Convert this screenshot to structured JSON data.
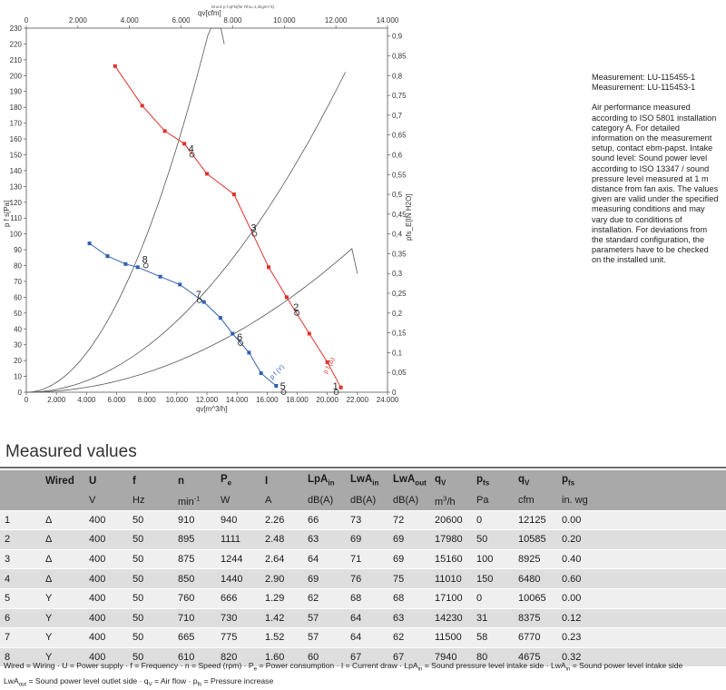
{
  "chart_data": {
    "type": "line",
    "title": "Druck p f-qFN(für Rho=1,2kg/m^3)",
    "xlabel_bottom": "qv[m^3/h]",
    "xlabel_top": "qv[cfm]",
    "ylabel_left": "p f s[Pa]",
    "ylabel_right": "pfs_E[IN H2O]",
    "xlim": [
      0,
      24000
    ],
    "ylim": [
      0,
      230
    ],
    "top_xlim": [
      0,
      14000
    ],
    "right_ylim": [
      0,
      0.92
    ],
    "x_ticks": [
      "0",
      "2.000",
      "4.000",
      "6.000",
      "8.000",
      "10.000",
      "12.000",
      "14.000",
      "16.000",
      "18.000",
      "20.000",
      "22.000",
      "24.000"
    ],
    "top_x_ticks": [
      "0",
      "2.000",
      "4.000",
      "6.000",
      "8.000",
      "10.000",
      "12.000",
      "14.000"
    ],
    "y_ticks": [
      "0",
      "10",
      "20",
      "30",
      "40",
      "50",
      "60",
      "70",
      "80",
      "90",
      "100",
      "110",
      "120",
      "130",
      "140",
      "150",
      "160",
      "170",
      "180",
      "190",
      "200",
      "210",
      "220",
      "230"
    ],
    "right_ticks": [
      "0",
      "0,05",
      "0,1",
      "0,15",
      "0,2",
      "0,25",
      "0,3",
      "0,35",
      "0,4",
      "0,45",
      "0,5",
      "0,55",
      "0,6",
      "0,65",
      "0,7",
      "0,75",
      "0,8",
      "0,85",
      "0,9"
    ],
    "grid": false,
    "series": [
      {
        "name": "p f (Δ)",
        "color": "#e0312b",
        "x": [
          5900,
          7700,
          9200,
          10500,
          12000,
          13800,
          16100,
          17300,
          18800,
          20000,
          20900
        ],
        "y": [
          206,
          181,
          165,
          157,
          138,
          125,
          79,
          60,
          37,
          19,
          3
        ]
      },
      {
        "name": "p f (Y)",
        "color": "#2f5fad",
        "x": [
          4200,
          5400,
          6600,
          7400,
          8900,
          10200,
          11800,
          12900,
          13700,
          14800,
          15600,
          16600
        ],
        "y": [
          94,
          86,
          81,
          79,
          73,
          68,
          57,
          47,
          37,
          25,
          12,
          4
        ]
      }
    ],
    "system_curves": [
      {
        "name": "system-curve-1",
        "x": [
          0,
          4000,
          8000,
          12000,
          16000,
          20000,
          22000
        ],
        "y": [
          0,
          3.1,
          12.4,
          27.9,
          49.6,
          77.5,
          75
        ]
      },
      {
        "name": "system-curve-2",
        "x": [
          0,
          4000,
          8000,
          12000,
          16000,
          20000,
          21200
        ],
        "y": [
          0,
          7.2,
          28.8,
          64.8,
          115.2,
          180,
          203
        ]
      },
      {
        "name": "system-curve-3",
        "x": [
          0,
          4000,
          8000,
          12000,
          13150
        ],
        "y": [
          0,
          24.8,
          99.3,
          223.3,
          220
        ]
      }
    ],
    "operating_points": [
      {
        "label": "1",
        "x": 20600,
        "y": 0
      },
      {
        "label": "2",
        "x": 17980,
        "y": 50
      },
      {
        "label": "3",
        "x": 15160,
        "y": 100
      },
      {
        "label": "4",
        "x": 11010,
        "y": 150
      },
      {
        "label": "5",
        "x": 17100,
        "y": 0
      },
      {
        "label": "6",
        "x": 14230,
        "y": 31
      },
      {
        "label": "7",
        "x": 11500,
        "y": 58
      },
      {
        "label": "8",
        "x": 7940,
        "y": 80
      }
    ],
    "curve_labels": [
      "p f (Δ)",
      "p f (Y)"
    ]
  },
  "side_note": {
    "measurement_1": "Measurement: LU-115455-1",
    "measurement_2": "Measurement: LU-115453-1",
    "description": "Air performance measured according to ISO 5801 installation category A. For detailed information on the measurement setup, contact ebm-papst. Intake sound level: Sound power level according to ISO 13347 / sound pressure level measured at 1 m distance from fan axis. The values given are valid under the specified measuring conditions and may vary due to conditions of installation. For deviations from the standard configuration, the parameters have to be checked on the installed unit."
  },
  "table": {
    "title": "Measured values",
    "headers": {
      "blank": "",
      "wired": "Wired",
      "u": "U",
      "f": "f",
      "n": "n",
      "pe": "Pe",
      "i": "I",
      "lpain": "LpAin",
      "lwain": "LwAin",
      "lwaout": "LwAout",
      "qv": "qV",
      "pfs": "pfs",
      "qv2": "qV",
      "pfs2": "pfs"
    },
    "units": {
      "blank": "",
      "wired": "",
      "u": "V",
      "f": "Hz",
      "n": "min-1",
      "pe": "W",
      "i": "A",
      "lpain": "dB(A)",
      "lwain": "dB(A)",
      "lwaout": "dB(A)",
      "qv": "m3/h",
      "pfs": "Pa",
      "qv2": "cfm",
      "pfs2": "in. wg"
    },
    "rows": [
      [
        "1",
        "Δ",
        "400",
        "50",
        "910",
        "940",
        "2.26",
        "66",
        "73",
        "72",
        "20600",
        "0",
        "12125",
        "0.00"
      ],
      [
        "2",
        "Δ",
        "400",
        "50",
        "895",
        "1111",
        "2.48",
        "63",
        "69",
        "69",
        "17980",
        "50",
        "10585",
        "0.20"
      ],
      [
        "3",
        "Δ",
        "400",
        "50",
        "875",
        "1244",
        "2.64",
        "64",
        "71",
        "69",
        "15160",
        "100",
        "8925",
        "0.40"
      ],
      [
        "4",
        "Δ",
        "400",
        "50",
        "850",
        "1440",
        "2.90",
        "69",
        "76",
        "75",
        "11010",
        "150",
        "6480",
        "0.60"
      ],
      [
        "5",
        "Y",
        "400",
        "50",
        "760",
        "666",
        "1.29",
        "62",
        "68",
        "68",
        "17100",
        "0",
        "10065",
        "0.00"
      ],
      [
        "6",
        "Y",
        "400",
        "50",
        "710",
        "730",
        "1.42",
        "57",
        "64",
        "63",
        "14230",
        "31",
        "8375",
        "0.12"
      ],
      [
        "7",
        "Y",
        "400",
        "50",
        "665",
        "775",
        "1.52",
        "57",
        "64",
        "62",
        "11500",
        "58",
        "6770",
        "0.23"
      ],
      [
        "8",
        "Y",
        "400",
        "50",
        "610",
        "820",
        "1.60",
        "60",
        "67",
        "67",
        "7940",
        "80",
        "4675",
        "0.32"
      ]
    ],
    "footnote_line1": "Wired = Wiring · U = Power supply · f = Frequency · n = Speed (rpm) · Pe = Power consumption · I = Current draw · LpAin = Sound pressure level intake side · LwAin = Sound power level intake side",
    "footnote_line2": "LwAout = Sound power level outlet side · qV = Air flow · pfs = Pressure increase"
  }
}
